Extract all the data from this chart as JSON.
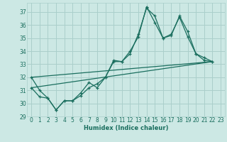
{
  "xlabel": "Humidex (Indice chaleur)",
  "background_color": "#cce8e4",
  "grid_color": "#aacfcb",
  "line_color": "#1a6e5e",
  "xlim": [
    -0.5,
    23.5
  ],
  "ylim": [
    29,
    37.7
  ],
  "yticks": [
    29,
    30,
    31,
    32,
    33,
    34,
    35,
    36,
    37
  ],
  "xticks": [
    0,
    1,
    2,
    3,
    4,
    5,
    6,
    7,
    8,
    9,
    10,
    11,
    12,
    13,
    14,
    15,
    16,
    17,
    18,
    19,
    20,
    21,
    22,
    23
  ],
  "series": {
    "jagged1_x": [
      0,
      1,
      2,
      3,
      4,
      5,
      6,
      7,
      8,
      9,
      10,
      11,
      12,
      13,
      14,
      15,
      16,
      17,
      18,
      19,
      20,
      21,
      22
    ],
    "jagged1_y": [
      32.0,
      31.0,
      30.4,
      29.5,
      30.2,
      30.2,
      30.8,
      31.6,
      31.2,
      32.0,
      33.3,
      33.2,
      33.8,
      35.3,
      37.3,
      36.7,
      35.0,
      35.3,
      36.6,
      35.1,
      33.8,
      33.5,
      33.2
    ],
    "jagged2_x": [
      0,
      1,
      2,
      3,
      4,
      5,
      6,
      7,
      8,
      9,
      10,
      11,
      12,
      13,
      14,
      15,
      16,
      17,
      18,
      19,
      20,
      21,
      22
    ],
    "jagged2_y": [
      31.2,
      30.5,
      30.4,
      29.5,
      30.2,
      30.2,
      30.6,
      31.2,
      31.5,
      32.0,
      33.2,
      33.2,
      34.0,
      35.1,
      37.4,
      36.2,
      35.0,
      35.2,
      36.7,
      35.5,
      33.8,
      33.3,
      33.2
    ],
    "trend1_x": [
      0,
      22
    ],
    "trend1_y": [
      32.0,
      33.2
    ],
    "trend2_x": [
      0,
      22
    ],
    "trend2_y": [
      31.2,
      33.2
    ]
  }
}
